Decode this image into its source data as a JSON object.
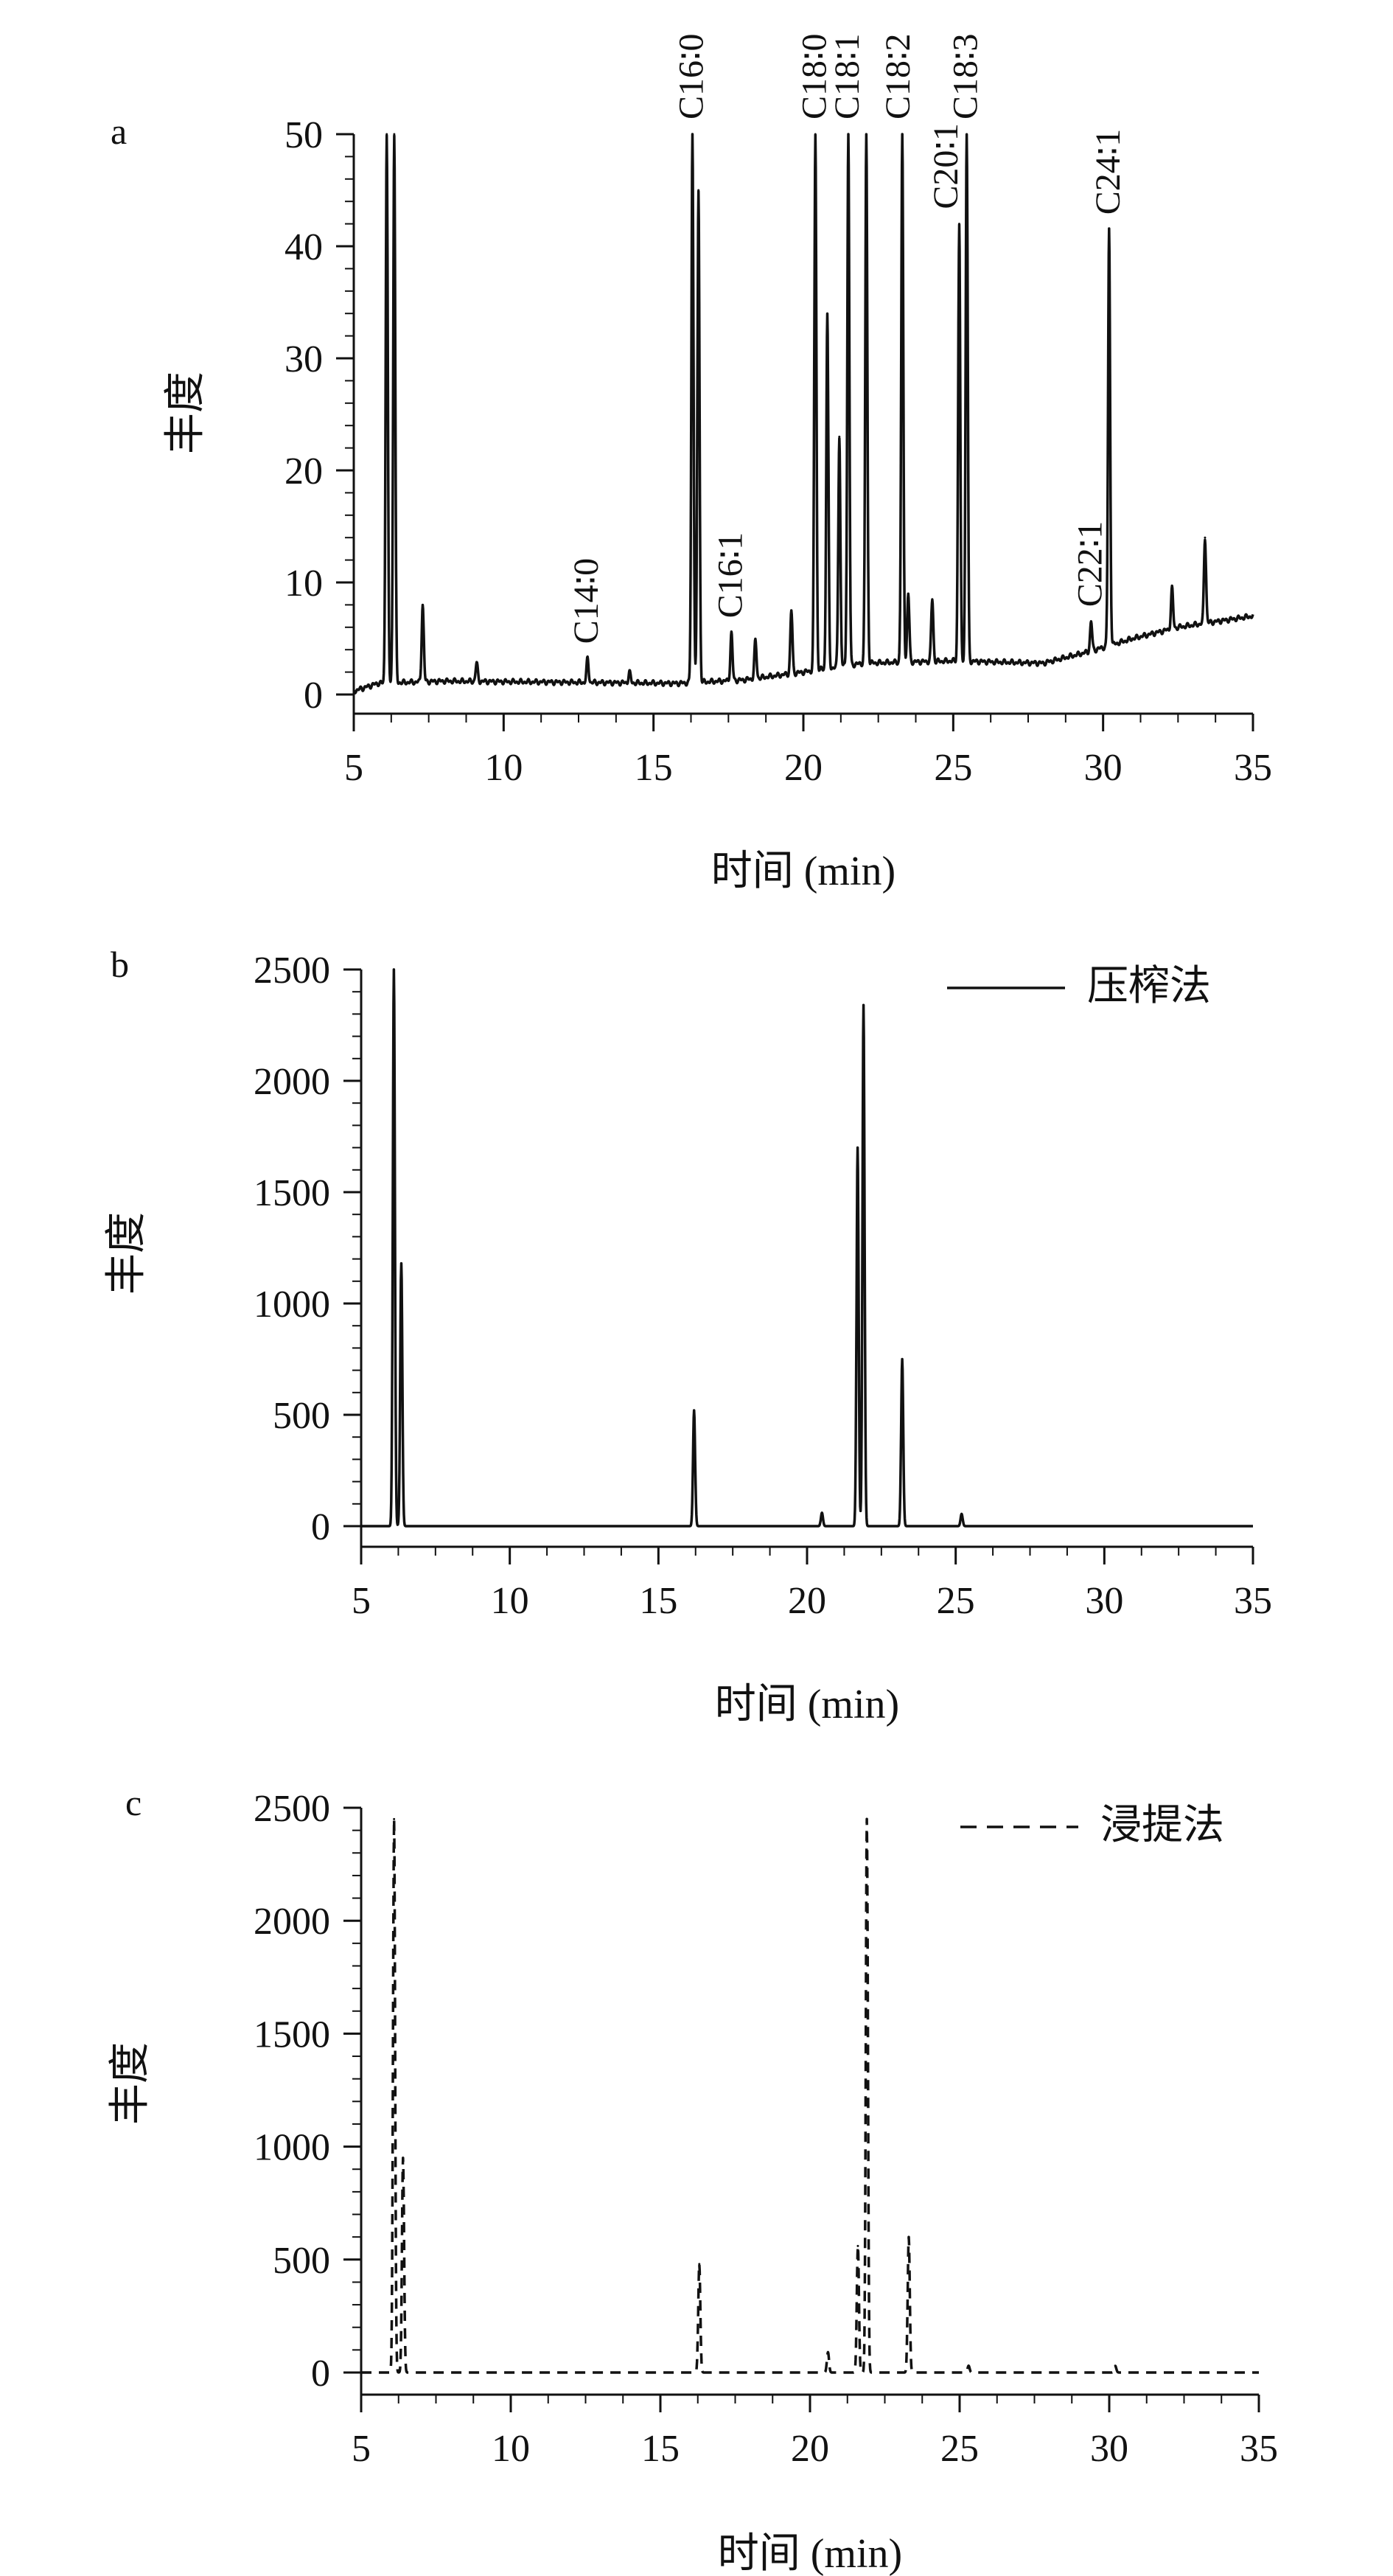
{
  "chart_data": [
    {
      "type": "line",
      "panel_label": "a",
      "xlabel": "时间 (min)",
      "ylabel": "丰度",
      "xlim": [
        5,
        35
      ],
      "ylim": [
        0,
        50
      ],
      "x_ticks": [
        5,
        10,
        15,
        20,
        25,
        30,
        35
      ],
      "y_ticks": [
        0,
        10,
        20,
        30,
        40,
        50
      ],
      "grid": false,
      "line_style": "solid",
      "color": "#111111",
      "baseline": [
        [
          5,
          0.3
        ],
        [
          5.8,
          1.0
        ],
        [
          8,
          1.2
        ],
        [
          12,
          1.1
        ],
        [
          15.8,
          1.0
        ],
        [
          18,
          1.3
        ],
        [
          20,
          2.0
        ],
        [
          22,
          2.8
        ],
        [
          25,
          3.0
        ],
        [
          28,
          2.8
        ],
        [
          29.5,
          3.8
        ],
        [
          31,
          5.0
        ],
        [
          32.5,
          6.0
        ],
        [
          35,
          7.0
        ]
      ],
      "peaks": [
        {
          "x": 6.1,
          "y": 50
        },
        {
          "x": 6.35,
          "y": 50
        },
        {
          "x": 7.3,
          "y": 8
        },
        {
          "x": 9.1,
          "y": 2.8
        },
        {
          "x": 12.8,
          "y": 3.2
        },
        {
          "x": 14.2,
          "y": 2.0
        },
        {
          "x": 16.3,
          "y": 50
        },
        {
          "x": 16.5,
          "y": 45
        },
        {
          "x": 17.6,
          "y": 5.5
        },
        {
          "x": 18.4,
          "y": 4.8
        },
        {
          "x": 19.6,
          "y": 7.5
        },
        {
          "x": 20.4,
          "y": 50
        },
        {
          "x": 20.8,
          "y": 34
        },
        {
          "x": 21.2,
          "y": 23
        },
        {
          "x": 21.5,
          "y": 50
        },
        {
          "x": 22.1,
          "y": 50
        },
        {
          "x": 23.3,
          "y": 50
        },
        {
          "x": 23.5,
          "y": 9
        },
        {
          "x": 24.3,
          "y": 8.5
        },
        {
          "x": 25.2,
          "y": 42
        },
        {
          "x": 25.45,
          "y": 50
        },
        {
          "x": 29.6,
          "y": 6.5
        },
        {
          "x": 30.2,
          "y": 41.5
        },
        {
          "x": 32.3,
          "y": 9.5
        },
        {
          "x": 33.4,
          "y": 14
        }
      ],
      "peak_labels": [
        {
          "text": "C14∶0",
          "x": 12.8,
          "y": 3.2
        },
        {
          "text": "C16∶0",
          "x": 16.3,
          "y": 50
        },
        {
          "text": "C16∶1",
          "x": 17.6,
          "y": 5.5
        },
        {
          "text": "C18∶0",
          "x": 20.4,
          "y": 50
        },
        {
          "text": "C18∶1",
          "x": 21.5,
          "y": 50
        },
        {
          "text": "C18∶2",
          "x": 23.2,
          "y": 50
        },
        {
          "text": "C20∶1",
          "x": 24.8,
          "y": 42
        },
        {
          "text": "C18∶3",
          "x": 25.45,
          "y": 50
        },
        {
          "text": "C22∶1",
          "x": 29.6,
          "y": 6.5
        },
        {
          "text": "C24∶1",
          "x": 30.2,
          "y": 41.5
        }
      ]
    },
    {
      "type": "line",
      "panel_label": "b",
      "xlabel": "时间 (min)",
      "ylabel": "丰度",
      "xlim": [
        5,
        35
      ],
      "ylim": [
        0,
        2500
      ],
      "x_ticks": [
        5,
        10,
        15,
        20,
        25,
        30,
        35
      ],
      "y_ticks": [
        0,
        500,
        1000,
        1500,
        2000,
        2500
      ],
      "grid": false,
      "legend": {
        "position": "top-right",
        "entries": [
          "压榨法"
        ]
      },
      "line_style": "solid",
      "color": "#111111",
      "baseline": [
        [
          5,
          0
        ],
        [
          35,
          0
        ]
      ],
      "peaks": [
        {
          "x": 6.1,
          "y": 2500
        },
        {
          "x": 6.35,
          "y": 1180
        },
        {
          "x": 16.2,
          "y": 520
        },
        {
          "x": 20.5,
          "y": 60
        },
        {
          "x": 21.7,
          "y": 1700
        },
        {
          "x": 21.9,
          "y": 2340
        },
        {
          "x": 23.2,
          "y": 750
        },
        {
          "x": 25.2,
          "y": 55
        }
      ]
    },
    {
      "type": "line",
      "panel_label": "c",
      "xlabel": "时间 (min)",
      "ylabel": "丰度",
      "xlim": [
        5,
        35
      ],
      "ylim": [
        0,
        2500
      ],
      "x_ticks": [
        5,
        10,
        15,
        20,
        25,
        30,
        35
      ],
      "y_ticks": [
        0,
        500,
        1000,
        1500,
        2000,
        2500
      ],
      "grid": false,
      "legend": {
        "position": "top-right",
        "entries": [
          "浸提法"
        ]
      },
      "line_style": "dashed",
      "color": "#111111",
      "baseline": [
        [
          5,
          0
        ],
        [
          35,
          0
        ]
      ],
      "peaks": [
        {
          "x": 6.1,
          "y": 2450
        },
        {
          "x": 6.4,
          "y": 950
        },
        {
          "x": 16.3,
          "y": 480
        },
        {
          "x": 20.6,
          "y": 90
        },
        {
          "x": 21.6,
          "y": 560
        },
        {
          "x": 21.9,
          "y": 2450
        },
        {
          "x": 23.3,
          "y": 600
        },
        {
          "x": 25.3,
          "y": 30
        },
        {
          "x": 30.2,
          "y": 30
        }
      ]
    }
  ]
}
